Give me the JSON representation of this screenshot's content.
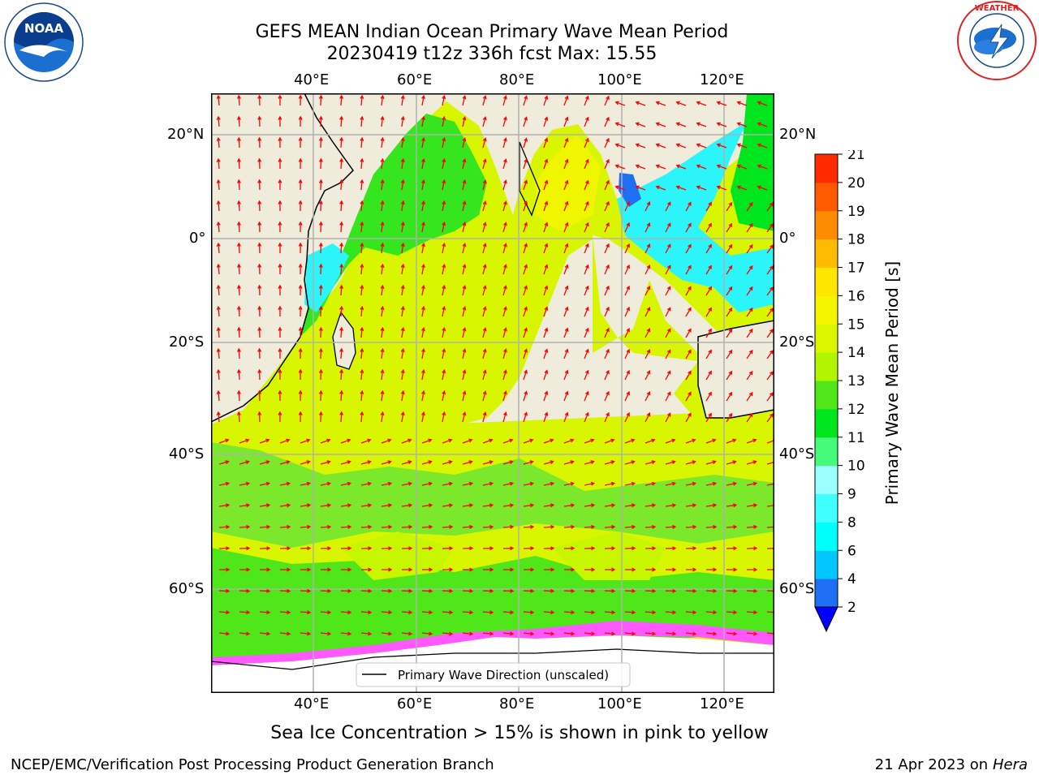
{
  "header": {
    "title_line1": "GEFS MEAN Indian Ocean Primary Wave Mean Period",
    "title_line2": "20230419 t12z 336h fcst   Max: 15.55"
  },
  "logos": {
    "left": {
      "text": "NOAA",
      "ring": "NATIONAL OCEANIC AND ATMOSPHERIC ADMINISTRATION · U.S. DEPARTMENT OF COMMERCE",
      "icon": "noaa-logo-icon"
    },
    "right": {
      "ring": "NATIONAL WEATHER SERVICE",
      "icon": "nws-logo-icon"
    }
  },
  "map": {
    "lon_labels": [
      "40°E",
      "60°E",
      "80°E",
      "100°E",
      "120°E"
    ],
    "lat_labels": [
      "20°N",
      "0°",
      "20°S",
      "40°S",
      "60°S"
    ],
    "legend_label": "Primary Wave Direction (unscaled)",
    "land_color": "#efecdc",
    "arrow_color": "#ff0000"
  },
  "colorbar": {
    "label": "Primary Wave Mean Period [s]",
    "ticks": [
      "2",
      "4",
      "6",
      "8",
      "9",
      "10",
      "11",
      "12",
      "13",
      "14",
      "15",
      "16",
      "17",
      "18",
      "19",
      "20",
      "21"
    ],
    "colors": [
      "#1f6ff5",
      "#00c8ff",
      "#00fffa",
      "#40ffff",
      "#9cffff",
      "#47fb7a",
      "#00e61e",
      "#4fe61a",
      "#b2f500",
      "#dbf700",
      "#f5f500",
      "#ffe600",
      "#ffbb00",
      "#ff8c00",
      "#ff5a00",
      "#ff2a00"
    ],
    "extend_color": "#0000ff"
  },
  "caption": "Sea Ice Concentration > 15% is shown in pink to yellow",
  "footer": {
    "left": "NCEP/EMC/Verification Post Processing Product Generation Branch",
    "right_prefix": "21 Apr 2023 on ",
    "right_host": "Hera"
  }
}
